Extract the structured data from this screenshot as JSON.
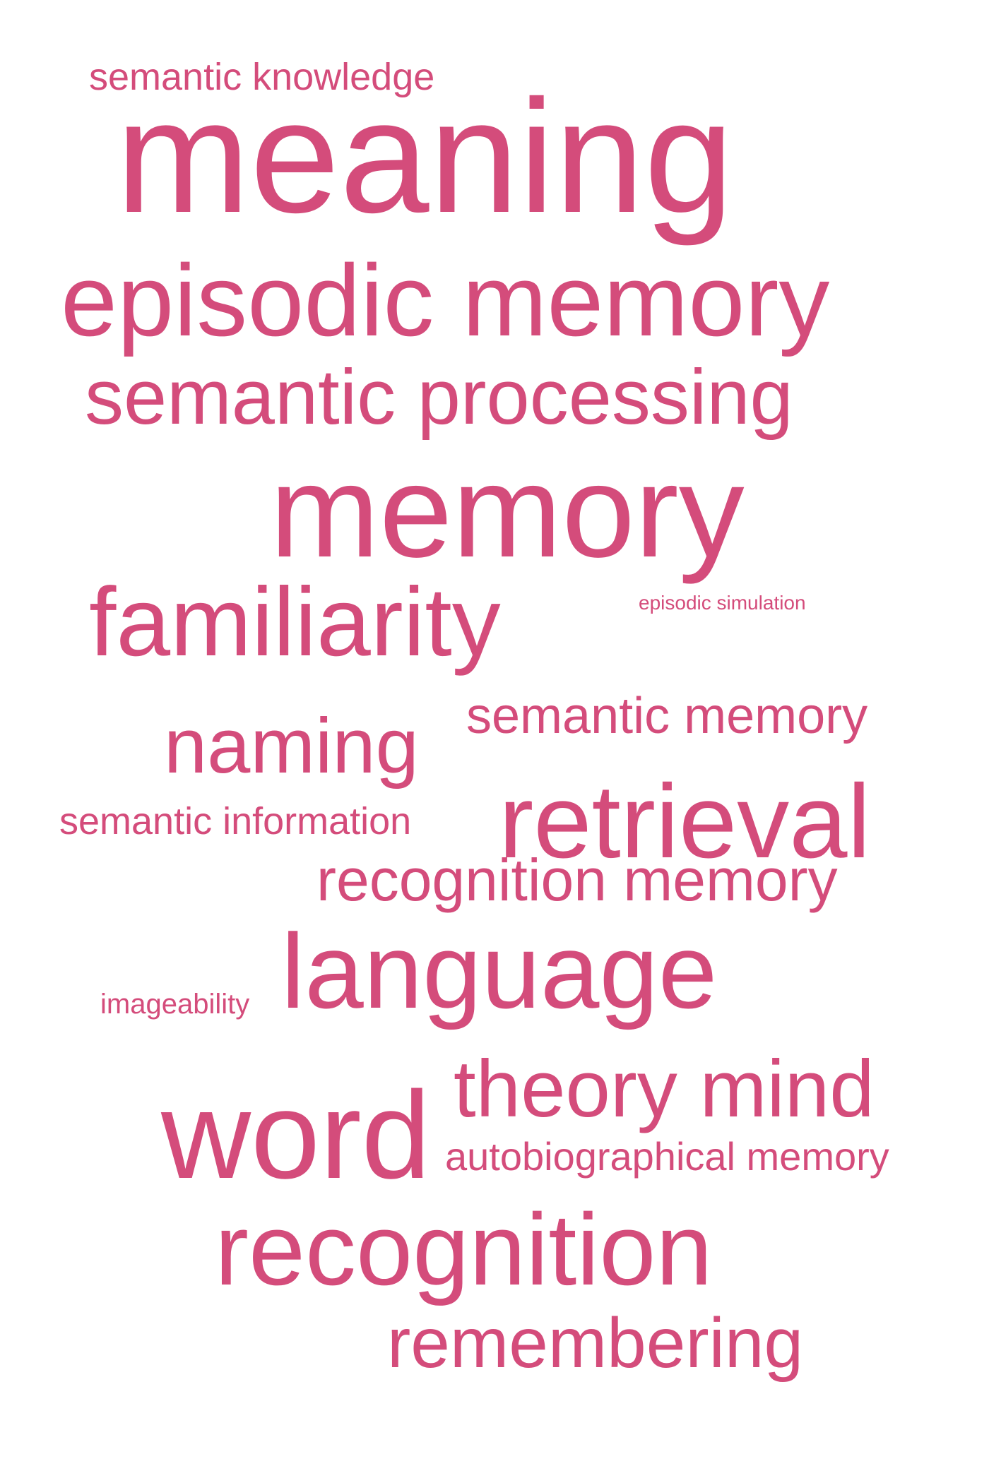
{
  "cloud": {
    "color": "#d44c7b",
    "background": "#ffffff",
    "words": {
      "semantic_knowledge": "semantic knowledge",
      "meaning": "meaning",
      "episodic_memory": "episodic memory",
      "semantic_processing": "semantic processing",
      "memory": "memory",
      "episodic_simulation": "episodic simulation",
      "familiarity": "familiarity",
      "semantic_memory": "semantic memory",
      "naming": "naming",
      "semantic_information": "semantic information",
      "retrieval": "retrieval",
      "recognition_memory": "recognition memory",
      "language": "language",
      "imageability": "imageability",
      "theory_mind": "theory mind",
      "word": "word",
      "autobiographical_memory": "autobiographical memory",
      "recognition": "recognition",
      "remembering": "remembering"
    }
  }
}
